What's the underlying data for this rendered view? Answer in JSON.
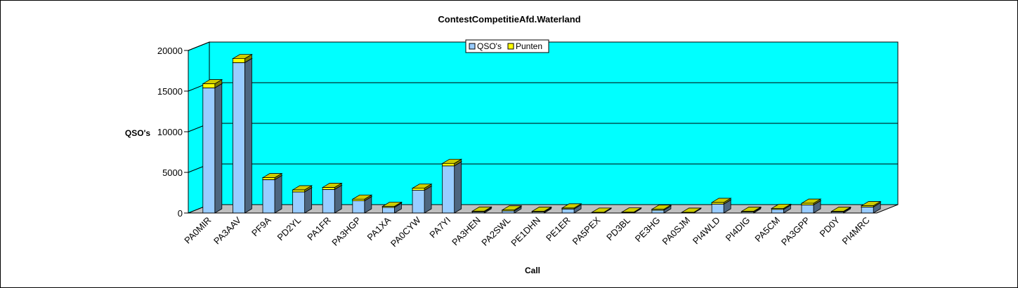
{
  "chart_data": {
    "type": "bar",
    "stacked": true,
    "three_d": true,
    "title": "ContestCompetitieAfd.Waterland",
    "xlabel": "Call",
    "ylabel": "QSO's",
    "ylim": [
      0,
      20000
    ],
    "yticks": [
      0,
      5000,
      10000,
      15000,
      20000
    ],
    "grid": true,
    "legend_position": "top-center",
    "categories": [
      "PA0MIR",
      "PA3AAV",
      "PF9A",
      "PD2YL",
      "PA1FR",
      "PA3HGP",
      "PA1XA",
      "PA0CYW",
      "PA7YI",
      "PA3HEN",
      "PA2SWL",
      "PE1DHN",
      "PE1ER",
      "PA5PEX",
      "PD3BL",
      "PE3HG",
      "PA0SJM",
      "PI4WLD",
      "PI4DIG",
      "PA5CM",
      "PA3GPP",
      "PD0Y",
      "PI4MRC"
    ],
    "series": [
      {
        "name": "QSO's",
        "color": "#99ccff",
        "values": [
          15400,
          18500,
          4100,
          2600,
          2900,
          1500,
          700,
          2800,
          5800,
          130,
          250,
          120,
          500,
          40,
          60,
          350,
          30,
          1100,
          120,
          450,
          1000,
          130,
          750
        ]
      },
      {
        "name": "Punten",
        "color": "#ffff00",
        "values": [
          500,
          500,
          250,
          250,
          250,
          200,
          120,
          250,
          300,
          100,
          120,
          100,
          120,
          60,
          60,
          120,
          60,
          200,
          100,
          120,
          200,
          80,
          150
        ]
      }
    ],
    "colors": {
      "background": "#ffffff",
      "plot_area": "#00ffff",
      "floor": "#c0c0c0",
      "gridline": "#000000"
    }
  }
}
